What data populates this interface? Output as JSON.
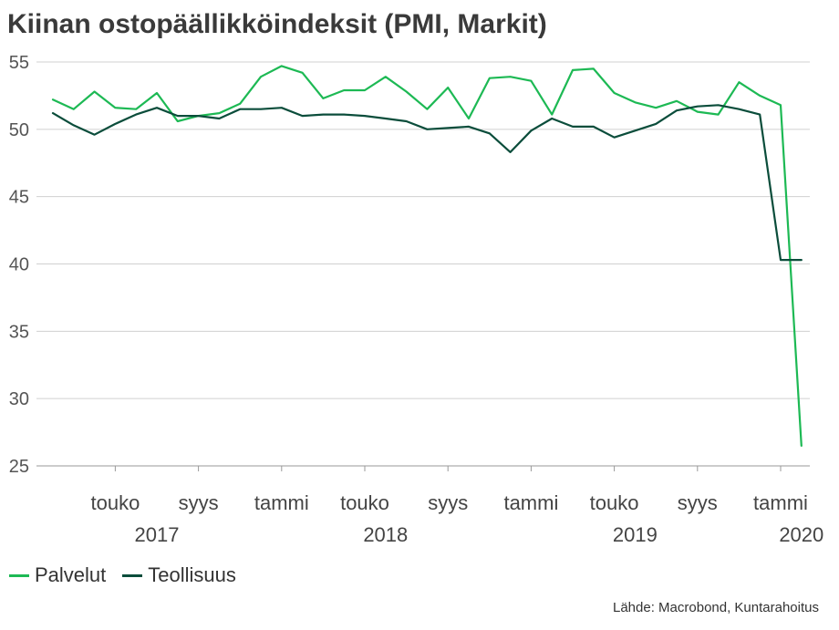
{
  "title": "Kiinan ostopäällikköindeksit (PMI, Markit)",
  "source": "Lähde: Macrobond, Kuntarahoitus",
  "colors": {
    "palvelut": "#1db954",
    "teollisuus": "#0b4d3b",
    "grid": "#d0d0d0",
    "axis": "#999999"
  },
  "legend": [
    {
      "name": "Palvelut",
      "color": "#1db954"
    },
    {
      "name": "Teollisuus",
      "color": "#0b4d3b"
    }
  ],
  "chart_data": {
    "type": "line",
    "title": "Kiinan ostopäällikköindeksit (PMI, Markit)",
    "xlabel": "",
    "ylabel": "",
    "ylim": [
      25,
      55
    ],
    "yticks": [
      25,
      30,
      35,
      40,
      45,
      50,
      55
    ],
    "grid": true,
    "legend_position": "bottom-left",
    "x": [
      "2017-02",
      "2017-03",
      "2017-04",
      "2017-05",
      "2017-06",
      "2017-07",
      "2017-08",
      "2017-09",
      "2017-10",
      "2017-11",
      "2017-12",
      "2018-01",
      "2018-02",
      "2018-03",
      "2018-04",
      "2018-05",
      "2018-06",
      "2018-07",
      "2018-08",
      "2018-09",
      "2018-10",
      "2018-11",
      "2018-12",
      "2019-01",
      "2019-02",
      "2019-03",
      "2019-04",
      "2019-05",
      "2019-06",
      "2019-07",
      "2019-08",
      "2019-09",
      "2019-10",
      "2019-11",
      "2019-12",
      "2020-01",
      "2020-02"
    ],
    "x_tick_labels": [
      {
        "label": "touko",
        "x": "2017-05"
      },
      {
        "label": "syys",
        "x": "2017-09"
      },
      {
        "label": "tammi",
        "x": "2018-01"
      },
      {
        "label": "touko",
        "x": "2018-05"
      },
      {
        "label": "syys",
        "x": "2018-09"
      },
      {
        "label": "tammi",
        "x": "2019-01"
      },
      {
        "label": "touko",
        "x": "2019-05"
      },
      {
        "label": "syys",
        "x": "2019-09"
      },
      {
        "label": "tammi",
        "x": "2020-01"
      }
    ],
    "year_labels": [
      {
        "label": "2017",
        "x": "2017-07"
      },
      {
        "label": "2018",
        "x": "2018-06"
      },
      {
        "label": "2019",
        "x": "2019-06"
      },
      {
        "label": "2020",
        "x": "2020-02"
      }
    ],
    "series": [
      {
        "name": "Palvelut",
        "color": "#1db954",
        "values": [
          52.2,
          51.5,
          52.8,
          51.6,
          51.5,
          52.7,
          50.6,
          51.0,
          51.2,
          51.9,
          53.9,
          54.7,
          54.2,
          52.3,
          52.9,
          52.9,
          53.9,
          52.8,
          51.5,
          53.1,
          50.8,
          53.8,
          53.9,
          53.6,
          51.1,
          54.4,
          54.5,
          52.7,
          52.0,
          51.6,
          52.1,
          51.3,
          51.1,
          53.5,
          52.5,
          51.8,
          26.5
        ]
      },
      {
        "name": "Teollisuus",
        "color": "#0b4d3b",
        "values": [
          51.2,
          50.3,
          49.6,
          50.4,
          51.1,
          51.6,
          51.0,
          51.0,
          50.8,
          51.5,
          51.5,
          51.6,
          51.0,
          51.1,
          51.1,
          51.0,
          50.8,
          50.6,
          50.0,
          50.1,
          50.2,
          49.7,
          48.3,
          49.9,
          50.8,
          50.2,
          50.2,
          49.4,
          49.9,
          50.4,
          51.4,
          51.7,
          51.8,
          51.5,
          51.1,
          40.3,
          40.3
        ]
      }
    ]
  }
}
